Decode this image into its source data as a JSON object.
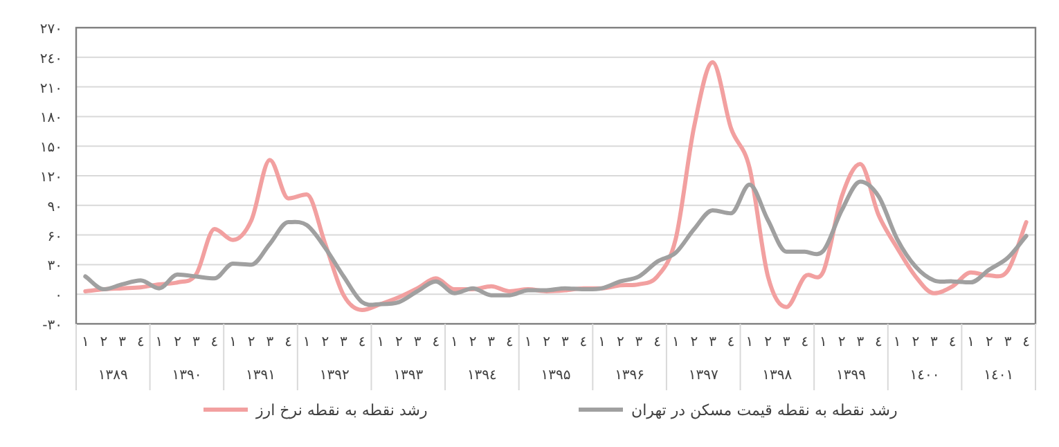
{
  "chart_data": {
    "type": "line",
    "categories": [
      "۱",
      "۲",
      "۳",
      "٤",
      "۱",
      "۲",
      "۳",
      "٤",
      "۱",
      "۲",
      "۳",
      "٤",
      "۱",
      "۲",
      "۳",
      "٤",
      "۱",
      "۲",
      "۳",
      "٤",
      "۱",
      "۲",
      "۳",
      "٤",
      "۱",
      "۲",
      "۳",
      "٤",
      "۱",
      "۲",
      "۳",
      "٤",
      "۱",
      "۲",
      "۳",
      "٤",
      "۱",
      "۲",
      "۳",
      "٤",
      "۱",
      "۲",
      "۳",
      "٤",
      "۱",
      "۲",
      "۳",
      "٤",
      "۱",
      "۲",
      "۳",
      "٤"
    ],
    "annotations": [
      "۱۳۸۹",
      "۱۳۹۰",
      "۱۳۹۱",
      "۱۳۹۲",
      "۱۳۹۳",
      "۱۳۹٤",
      "۱۳۹۵",
      "۱۳۹۶",
      "۱۳۹۷",
      "۱۳۹۸",
      "۱۳۹۹",
      "۱٤۰۰",
      "۱٤۰۱"
    ],
    "series": [
      {
        "name": "رشد نقطه به نقطه نرخ ارز",
        "color": "#f2a0a0",
        "values": [
          3,
          5,
          6,
          7,
          10,
          12,
          20,
          66,
          55,
          75,
          136,
          97,
          101,
          51,
          -1,
          -16,
          -10,
          -3,
          6,
          16,
          5,
          5,
          8,
          3,
          5,
          3,
          4,
          6,
          6,
          9,
          10,
          18,
          56,
          170,
          235,
          168,
          128,
          18,
          -13,
          18,
          23,
          99,
          132,
          80,
          47,
          18,
          1,
          8,
          22,
          19,
          24,
          73
        ]
      },
      {
        "name": "رشد نقطه به نقطه قیمت مسکن در تهران",
        "color": "#a0a0a0",
        "values": [
          18,
          5,
          10,
          14,
          6,
          20,
          18,
          16,
          31,
          30,
          51,
          73,
          70,
          47,
          18,
          -8,
          -10,
          -8,
          3,
          13,
          1,
          6,
          -1,
          -1,
          4,
          4,
          6,
          5,
          6,
          13,
          18,
          33,
          42,
          66,
          85,
          82,
          111,
          75,
          43,
          43,
          44,
          85,
          114,
          99,
          56,
          28,
          14,
          13,
          12,
          25,
          37,
          59
        ]
      }
    ],
    "ylim": [
      -30,
      270
    ],
    "yticks": [
      {
        "value": -30,
        "label": "-۳۰"
      },
      {
        "value": 0,
        "label": "۰"
      },
      {
        "value": 30,
        "label": "۳۰"
      },
      {
        "value": 60,
        "label": "۶۰"
      },
      {
        "value": 90,
        "label": "۹۰"
      },
      {
        "value": 120,
        "label": "۱۲۰"
      },
      {
        "value": 150,
        "label": "۱۵۰"
      },
      {
        "value": 180,
        "label": "۱۸۰"
      },
      {
        "value": 210,
        "label": "۲۱۰"
      },
      {
        "value": 240,
        "label": "۲٤۰"
      },
      {
        "value": 270,
        "label": "۲۷۰"
      }
    ],
    "grid": "y",
    "legend": "bottom",
    "marker": "none",
    "line_style": "solid"
  }
}
